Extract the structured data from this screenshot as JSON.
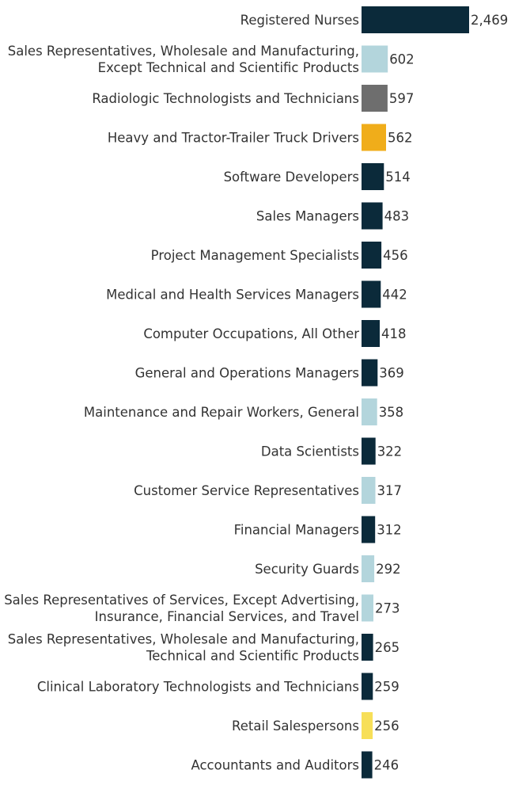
{
  "chart_data": {
    "type": "bar",
    "orientation": "horizontal",
    "title": "",
    "xlabel": "",
    "ylabel": "",
    "xlim": [
      0,
      2469
    ],
    "grid": false,
    "legend": "none",
    "categories": [
      [
        "Registered Nurses"
      ],
      [
        "Sales Representatives, Wholesale and Manufacturing,",
        "Except Technical and Scientific Products"
      ],
      [
        "Radiologic Technologists and Technicians"
      ],
      [
        "Heavy and Tractor-Trailer Truck Drivers"
      ],
      [
        "Software Developers"
      ],
      [
        "Sales Managers"
      ],
      [
        "Project Management Specialists"
      ],
      [
        "Medical and Health Services Managers"
      ],
      [
        "Computer Occupations, All Other"
      ],
      [
        "General and Operations Managers"
      ],
      [
        "Maintenance and Repair Workers, General"
      ],
      [
        "Data Scientists"
      ],
      [
        "Customer Service Representatives"
      ],
      [
        "Financial Managers"
      ],
      [
        "Security Guards"
      ],
      [
        "Sales Representatives of Services, Except Advertising,",
        "Insurance, Financial Services, and Travel"
      ],
      [
        "Sales Representatives, Wholesale and Manufacturing,",
        "Technical and Scientific Products"
      ],
      [
        "Clinical Laboratory Technologists and Technicians"
      ],
      [
        "Retail Salespersons"
      ],
      [
        "Accountants and Auditors"
      ]
    ],
    "values": [
      2469,
      602,
      597,
      562,
      514,
      483,
      456,
      442,
      418,
      369,
      358,
      322,
      317,
      312,
      292,
      273,
      265,
      259,
      256,
      246
    ],
    "value_labels": [
      "2,469",
      "602",
      "597",
      "562",
      "514",
      "483",
      "456",
      "442",
      "418",
      "369",
      "358",
      "322",
      "317",
      "312",
      "292",
      "273",
      "265",
      "259",
      "256",
      "246"
    ],
    "bar_colors": [
      "#0b2a3a",
      "#b3d5dc",
      "#6e6e6e",
      "#f0ad1a",
      "#0b2a3a",
      "#0b2a3a",
      "#0b2a3a",
      "#0b2a3a",
      "#0b2a3a",
      "#0b2a3a",
      "#b3d5dc",
      "#0b2a3a",
      "#b3d5dc",
      "#0b2a3a",
      "#b3d5dc",
      "#b3d5dc",
      "#0b2a3a",
      "#0b2a3a",
      "#f7df58",
      "#0b2a3a"
    ]
  }
}
